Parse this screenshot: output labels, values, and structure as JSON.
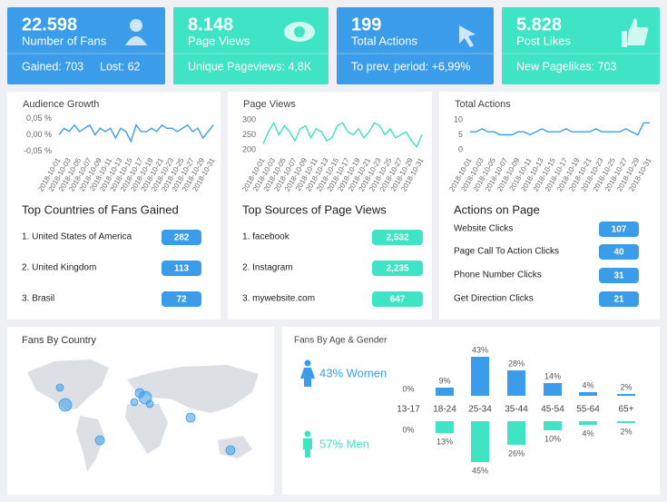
{
  "cards": [
    {
      "value": "22.598",
      "label": "Number of Fans",
      "details": [
        "Gained: 703",
        "Lost: 62"
      ],
      "color": "#3b9de9"
    },
    {
      "value": "8.148",
      "label": "Page Views",
      "details": [
        "Unique Pageviews: 4,8K"
      ],
      "color": "#3fe4c5"
    },
    {
      "value": "199",
      "label": "Total Actions",
      "details": [
        "To prev. period: +6,99%"
      ],
      "color": "#3b9de9"
    },
    {
      "value": "5.828",
      "label": "Post Likes",
      "details": [
        "New Pagelikes: 703"
      ],
      "color": "#3fe4c5"
    }
  ],
  "chart_data": [
    {
      "type": "line",
      "title": "Audience Growth",
      "color": "#3b9de9",
      "grid": false,
      "categories": [
        "2018-10-01",
        null,
        "2018-10-03",
        null,
        "2018-10-05",
        null,
        "2018-10-07",
        null,
        "2018-10-09",
        null,
        "2018-10-11",
        null,
        "2018-10-13",
        null,
        "2018-10-15",
        null,
        "2018-10-17",
        null,
        "2018-10-19",
        null,
        "2018-10-21",
        null,
        "2018-10-23",
        null,
        "2018-10-25",
        null,
        "2018-10-27",
        null,
        "2018-10-29",
        null,
        "2018-10-31"
      ],
      "values": [
        0,
        0.02,
        0.01,
        0.03,
        0.01,
        0.02,
        0.03,
        0,
        0.02,
        0.01,
        0.02,
        -0.01,
        0.02,
        0.01,
        -0.02,
        0.03,
        0.01,
        0.01,
        0.02,
        0.01,
        0.03,
        0.02,
        0.02,
        0.01,
        0.02,
        0.03,
        0.01,
        0.02,
        -0.01,
        0.01,
        0.03
      ],
      "ylim": [
        -0.06,
        0.06
      ],
      "yticks": [
        {
          "value": 0.05,
          "label": "0,05 %"
        },
        {
          "value": 0,
          "label": "0,00 %"
        },
        {
          "value": -0.05,
          "label": "-0,05 %"
        }
      ]
    },
    {
      "type": "line",
      "title": "Page Views",
      "color": "#3fe0c2",
      "grid": false,
      "categories": [
        "2018-10-01",
        null,
        "2018-10-03",
        null,
        "2018-10-05",
        null,
        "2018-10-07",
        null,
        "2018-10-09",
        null,
        "2018-10-11",
        null,
        "2018-10-13",
        null,
        "2018-10-15",
        null,
        "2018-10-17",
        null,
        "2018-10-19",
        null,
        "2018-10-21",
        null,
        "2018-10-23",
        null,
        "2018-10-25",
        null,
        "2018-10-27",
        null,
        "2018-10-29",
        null,
        "2018-10-31"
      ],
      "values": [
        220,
        260,
        290,
        250,
        280,
        260,
        230,
        270,
        280,
        240,
        270,
        260,
        230,
        240,
        280,
        290,
        260,
        250,
        270,
        240,
        260,
        290,
        280,
        250,
        270,
        240,
        250,
        260,
        230,
        210,
        250
      ],
      "ylim": [
        185,
        315
      ],
      "yticks": [
        300,
        250,
        200
      ]
    },
    {
      "type": "line",
      "title": "Total Actions",
      "color": "#3b9de9",
      "grid": false,
      "categories": [
        "2018-10-01",
        null,
        "2018-10-03",
        null,
        "2018-10-05",
        null,
        "2018-10-07",
        null,
        "2018-10-09",
        null,
        "2018-10-11",
        null,
        "2018-10-13",
        null,
        "2018-10-15",
        null,
        "2018-10-17",
        null,
        "2018-10-19",
        null,
        "2018-10-21",
        null,
        "2018-10-23",
        null,
        "2018-10-25",
        null,
        "2018-10-27",
        null,
        "2018-10-29",
        null,
        "2018-10-31"
      ],
      "values": [
        6,
        6,
        7,
        6,
        6,
        5,
        5,
        5,
        6,
        6,
        5,
        6,
        7,
        6,
        6,
        6,
        7,
        6,
        6,
        6,
        6,
        7,
        6,
        6,
        6,
        6,
        7,
        6,
        5,
        9,
        9
      ],
      "ylim": [
        -1.5,
        11.5
      ],
      "yticks": [
        10,
        5,
        0
      ]
    },
    {
      "type": "bar",
      "title": "Fans By Age & Gender",
      "categories": [
        "13-17",
        "18-24",
        "25-34",
        "35-44",
        "45-54",
        "55-64",
        "65+"
      ],
      "series": [
        {
          "annotation": "43% Women",
          "color": "#3b9de9",
          "values": [
            0,
            9,
            43,
            28,
            14,
            4,
            2
          ],
          "value_labels": [
            "0%",
            "9%",
            "43%",
            "28%",
            "14%",
            "4%",
            "2%"
          ]
        },
        {
          "annotation": "57% Men",
          "color": "#3fe4c5",
          "values": [
            0,
            13,
            45,
            26,
            10,
            4,
            2
          ],
          "value_labels": [
            "0%",
            "13%",
            "45%",
            "26%",
            "10%",
            "4%",
            "2%"
          ]
        }
      ]
    }
  ],
  "lists": [
    {
      "title": "Top Countries of Fans Gained",
      "color": "#3b9de9",
      "rows": [
        {
          "label": "1. United States of America",
          "value": "282"
        },
        {
          "label": "2. United Kingdom",
          "value": "113"
        },
        {
          "label": "3. Brasil",
          "value": "72"
        }
      ]
    },
    {
      "title": "Top Sources of Page Views",
      "color": "#3fe4c5",
      "rows": [
        {
          "label": "1. facebook",
          "value": "2,532"
        },
        {
          "label": "2. Instagram",
          "value": "2,235"
        },
        {
          "label": "3. mywebsite.com",
          "value": "647"
        }
      ]
    },
    {
      "title": "Actions on Page",
      "color": "#3b9de9",
      "rows": [
        {
          "label": "Website Clicks",
          "value": "107"
        },
        {
          "label": "Page Call To Action Clicks",
          "value": "40"
        },
        {
          "label": "Phone Number Clicks",
          "value": "31"
        },
        {
          "label": "Get Direction Clicks",
          "value": "21"
        }
      ]
    }
  ],
  "map": {
    "title": "Fans By Country"
  }
}
